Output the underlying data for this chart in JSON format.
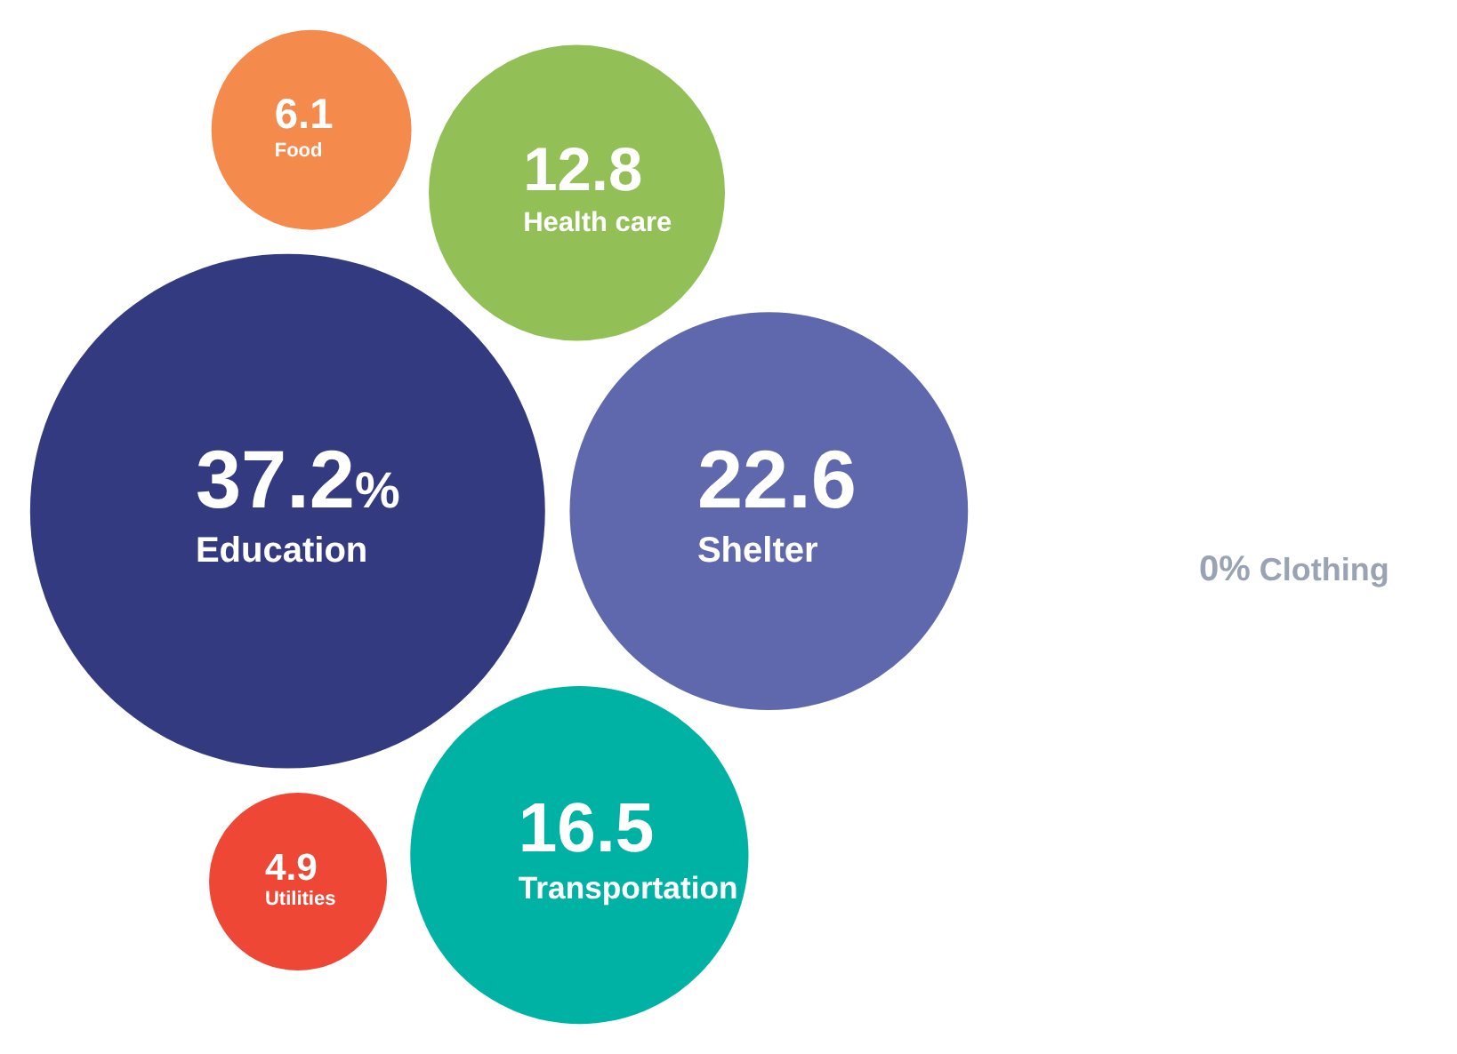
{
  "chart_data": {
    "type": "other",
    "categories": [
      "Education",
      "Shelter",
      "Transportation",
      "Health care",
      "Food",
      "Utilities",
      "Clothing"
    ],
    "values": [
      37.2,
      22.6,
      16.5,
      12.8,
      6.1,
      4.9,
      0
    ],
    "value_labels": [
      "37.2%",
      "22.6",
      "16.5",
      "12.8",
      "6.1",
      "4.9",
      "0%"
    ],
    "colors": [
      "#343a80",
      "#5f67ad",
      "#00b2a3",
      "#92c057",
      "#f48b4c",
      "#ef4736",
      "#9aa3b4"
    ]
  }
}
